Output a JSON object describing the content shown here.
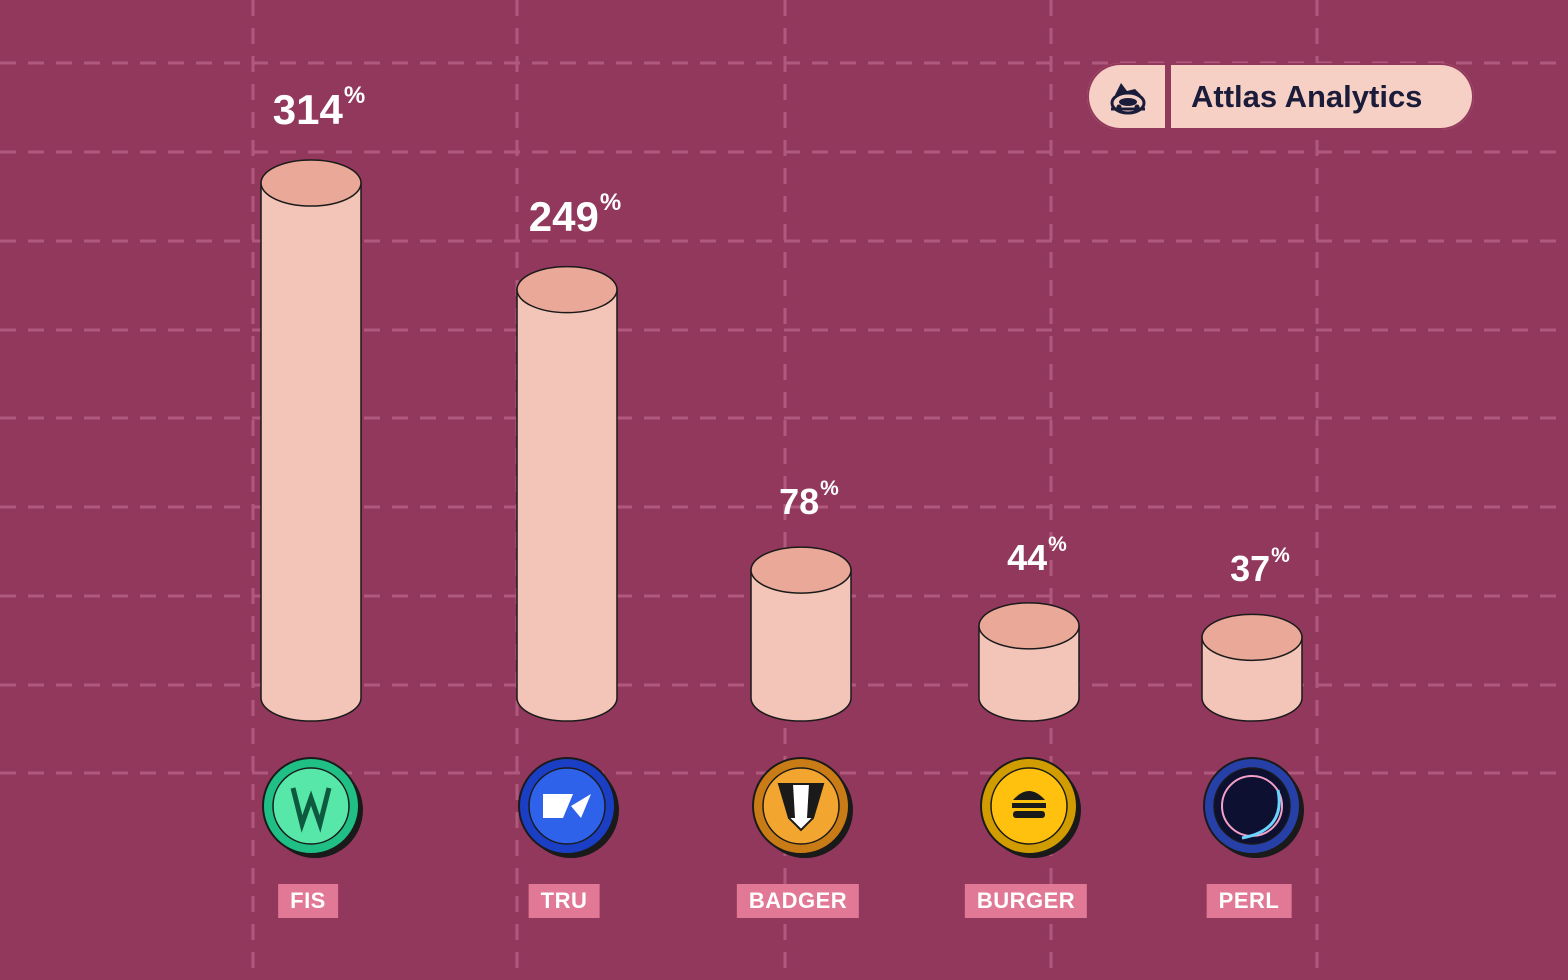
{
  "brand": {
    "name": "Attlas Analytics",
    "logo_icon": "dog-face-icon",
    "background": "#f6d0c4",
    "text_color": "#1b1b3a"
  },
  "colors": {
    "background": "#92385c",
    "grid": "#b0597e",
    "bar_body": "#f3c4b8",
    "bar_top": "#eaa898",
    "bar_outline": "#1a1a1a",
    "ticker_bg": "#e07896"
  },
  "chart_data": {
    "type": "bar",
    "style": "3d-cylinder",
    "unit": "%",
    "categories": [
      "FIS",
      "TRU",
      "BADGER",
      "BURGER",
      "PERL"
    ],
    "values": [
      314,
      249,
      78,
      44,
      37
    ],
    "value_labels": [
      "314",
      "249",
      "78",
      "44",
      "37"
    ],
    "coin_icons": [
      "fis-coin-icon",
      "tru-coin-icon",
      "badger-coin-icon",
      "burger-coin-icon",
      "perl-coin-icon"
    ],
    "grid": true,
    "legend": "none"
  }
}
